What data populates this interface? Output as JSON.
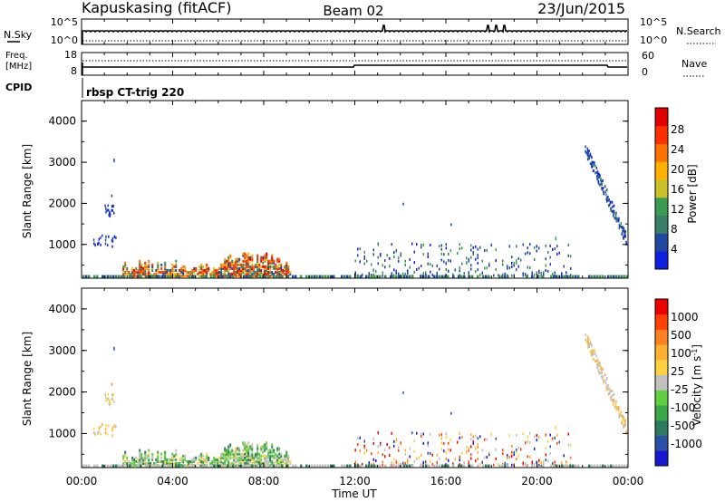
{
  "header": {
    "station": "Kapuskasing (fitACF)",
    "beam": "Beam 02",
    "date": "23/Jun/2015"
  },
  "nsky_panel": {
    "left_label": "N.Sky",
    "right_label": "N.Search",
    "left_ticks": [
      "10^5",
      "10^0"
    ],
    "right_ticks": [
      "10^5",
      "10^0"
    ]
  },
  "freq_panel": {
    "left_label_line1": "Freq.",
    "left_label_line2": "[MHz]",
    "right_label": "Nave",
    "left_ticks": [
      "18",
      "8"
    ],
    "right_ticks": [
      "60",
      "0"
    ]
  },
  "cpid_panel": {
    "label": "CPID",
    "program": "rbsp CT-trig 220"
  },
  "time_axis": {
    "label": "Time UT",
    "ticks": [
      "00:00",
      "04:00",
      "08:00",
      "12:00",
      "16:00",
      "20:00",
      "00:00"
    ]
  },
  "chart_data": [
    {
      "type": "heatmap",
      "name": "power",
      "ylabel": "Slant Range [km]",
      "yticks": [
        "1000",
        "2000",
        "3000",
        "4000"
      ],
      "ylim": [
        180,
        4500
      ],
      "xlim_hours": [
        0,
        24
      ],
      "colorbar": {
        "label": "Power [dB]",
        "ticks": [
          "4",
          "8",
          "12",
          "16",
          "20",
          "24",
          "28"
        ],
        "range": [
          0,
          30
        ],
        "colors": [
          "#1020e0",
          "#2048a0",
          "#3a7f6a",
          "#3c9a50",
          "#c8c028",
          "#ffb000",
          "#ff7000",
          "#ff3000",
          "#e00000"
        ]
      }
    },
    {
      "type": "heatmap",
      "name": "velocity",
      "ylabel": "Slant Range [km]",
      "yticks": [
        "1000",
        "2000",
        "3000",
        "4000"
      ],
      "ylim": [
        180,
        4500
      ],
      "xlim_hours": [
        0,
        24
      ],
      "colorbar": {
        "label": "Velocity [m s",
        "label_sup": "-1",
        "label_end": "]",
        "ticks": [
          "1000",
          "500",
          "100",
          "25",
          "-25",
          "-100",
          "-500",
          "-1000"
        ],
        "colors": [
          "#1818d0",
          "#2a50a8",
          "#2e7a5e",
          "#38a848",
          "#60d040",
          "#c0c0c0",
          "#ffd040",
          "#ffb030",
          "#ff8020",
          "#ff4000",
          "#ee0000"
        ]
      }
    }
  ]
}
